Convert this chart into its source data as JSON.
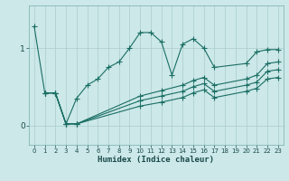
{
  "xlabel": "Humidex (Indice chaleur)",
  "xlim": [
    -0.5,
    23.5
  ],
  "ylim": [
    -0.25,
    1.55
  ],
  "background_color": "#cce8e8",
  "grid_color": "#aacccc",
  "line_color": "#1a6e64",
  "yticks": [
    0,
    1
  ],
  "xticks": [
    0,
    1,
    2,
    3,
    4,
    5,
    6,
    7,
    8,
    9,
    10,
    11,
    12,
    13,
    14,
    15,
    16,
    17,
    18,
    19,
    20,
    21,
    22,
    23
  ],
  "line1_x": [
    0,
    1,
    2,
    3,
    4,
    5,
    6,
    7,
    8,
    9,
    10,
    11,
    12,
    13,
    14,
    15,
    16,
    17,
    20,
    21,
    22,
    23
  ],
  "line1_y": [
    1.28,
    0.42,
    0.42,
    0.02,
    0.35,
    0.52,
    0.6,
    0.75,
    0.82,
    1.0,
    1.2,
    1.2,
    1.08,
    0.65,
    1.05,
    1.12,
    1.0,
    0.75,
    0.8,
    0.95,
    0.98,
    0.98
  ],
  "line2_x": [
    1,
    2,
    3,
    4,
    10,
    12,
    14,
    15,
    16,
    17,
    20,
    21,
    22,
    23
  ],
  "line2_y": [
    0.42,
    0.42,
    0.02,
    0.02,
    0.38,
    0.45,
    0.52,
    0.58,
    0.62,
    0.52,
    0.6,
    0.65,
    0.8,
    0.82
  ],
  "line3_x": [
    1,
    2,
    3,
    4,
    10,
    12,
    14,
    15,
    16,
    17,
    20,
    21,
    22,
    23
  ],
  "line3_y": [
    0.42,
    0.42,
    0.02,
    0.02,
    0.32,
    0.38,
    0.44,
    0.5,
    0.54,
    0.44,
    0.52,
    0.56,
    0.7,
    0.72
  ],
  "line4_x": [
    1,
    2,
    3,
    4,
    10,
    12,
    14,
    15,
    16,
    17,
    20,
    21,
    22,
    23
  ],
  "line4_y": [
    0.42,
    0.42,
    0.02,
    0.02,
    0.25,
    0.3,
    0.36,
    0.42,
    0.46,
    0.36,
    0.44,
    0.48,
    0.6,
    0.62
  ]
}
